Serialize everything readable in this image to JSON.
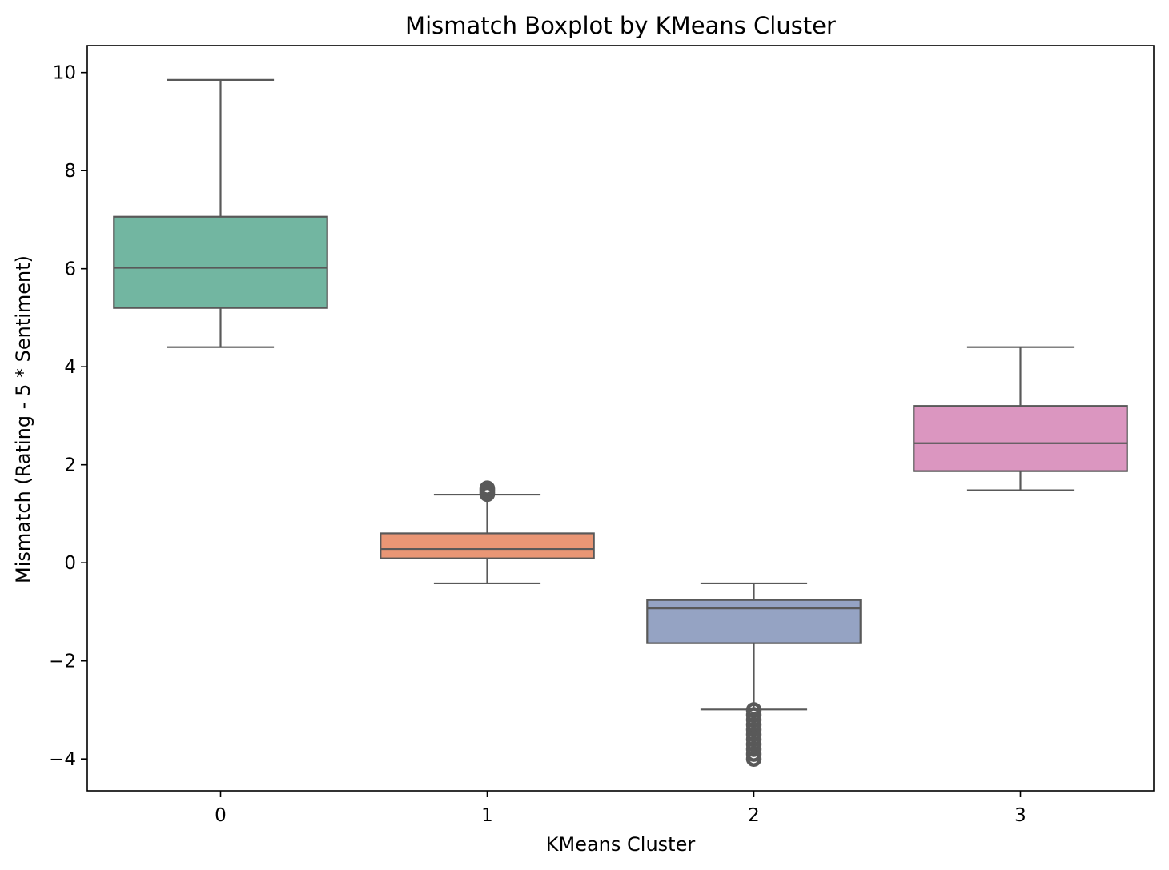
{
  "chart_data": {
    "type": "boxplot",
    "title": "Mismatch Boxplot by KMeans Cluster",
    "xlabel": "KMeans Cluster",
    "ylabel": "Mismatch (Rating - 5 * Sentiment)",
    "categories": [
      "0",
      "1",
      "2",
      "3"
    ],
    "ylim": [
      -4.65,
      10.55
    ],
    "yticks": [
      -4,
      -2,
      0,
      2,
      4,
      6,
      8,
      10
    ],
    "ytick_labels": [
      "−4",
      "−2",
      "0",
      "2",
      "4",
      "6",
      "8",
      "10"
    ],
    "grid": false,
    "boxes": [
      {
        "category": "0",
        "whisker_low": 4.4,
        "q1": 5.2,
        "median": 6.02,
        "q3": 7.06,
        "whisker_high": 9.85,
        "outliers": [],
        "color": "#72b6a1"
      },
      {
        "category": "1",
        "whisker_low": -0.42,
        "q1": 0.09,
        "median": 0.28,
        "q3": 0.6,
        "whisker_high": 1.39,
        "outliers": [
          1.4,
          1.43,
          1.46,
          1.49,
          1.52
        ],
        "color": "#e99675"
      },
      {
        "category": "2",
        "whisker_low": -2.99,
        "q1": -1.64,
        "median": -0.93,
        "q3": -0.76,
        "whisker_high": -0.42,
        "outliers": [
          -3.0,
          -3.1,
          -3.2,
          -3.3,
          -3.4,
          -3.5,
          -3.6,
          -3.7,
          -3.8,
          -3.9,
          -4.0
        ],
        "color": "#95a3c3"
      },
      {
        "category": "3",
        "whisker_low": 1.48,
        "q1": 1.87,
        "median": 2.44,
        "q3": 3.2,
        "whisker_high": 4.4,
        "outliers": [],
        "color": "#db96c0"
      }
    ]
  }
}
